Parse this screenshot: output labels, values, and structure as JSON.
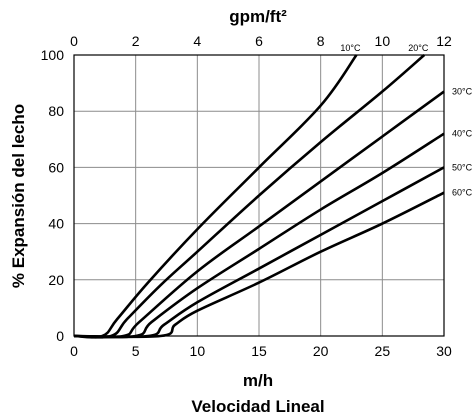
{
  "chart_data": {
    "type": "line",
    "x_top_label": "gpm/ft²",
    "x_bottom_label": "m/h",
    "x_bottom_sublabel": "Velocidad Lineal",
    "ylabel": "% Expansión del lecho",
    "x_bottom_ticks": [
      "0",
      "5",
      "10",
      "15",
      "20",
      "25",
      "30"
    ],
    "x_top_ticks": [
      "0",
      "2",
      "4",
      "6",
      "8",
      "10",
      "12"
    ],
    "y_ticks": [
      "0",
      "20",
      "40",
      "60",
      "80",
      "100"
    ],
    "xlim": [
      0,
      30
    ],
    "ylim": [
      0,
      100
    ],
    "grid": true,
    "series": [
      {
        "name": "10°C",
        "color": "#000000",
        "points": [
          [
            0,
            0
          ],
          [
            2.3,
            0
          ],
          [
            3.5,
            6
          ],
          [
            6,
            19
          ],
          [
            10,
            38
          ],
          [
            15,
            60
          ],
          [
            20,
            82
          ],
          [
            22.9,
            100
          ]
        ]
      },
      {
        "name": "20°C",
        "color": "#000000",
        "points": [
          [
            0,
            0
          ],
          [
            3,
            0
          ],
          [
            4.3,
            6
          ],
          [
            7,
            18
          ],
          [
            10,
            30
          ],
          [
            15,
            50
          ],
          [
            20,
            69
          ],
          [
            25,
            87
          ],
          [
            28.4,
            100
          ]
        ]
      },
      {
        "name": "30°C",
        "color": "#000000",
        "points": [
          [
            0,
            0
          ],
          [
            4,
            0
          ],
          [
            5.3,
            5
          ],
          [
            10,
            23
          ],
          [
            15,
            39
          ],
          [
            20,
            55
          ],
          [
            25,
            71
          ],
          [
            30,
            87
          ]
        ]
      },
      {
        "name": "40°C",
        "color": "#000000",
        "points": [
          [
            0,
            0
          ],
          [
            5,
            0
          ],
          [
            6.3,
            5
          ],
          [
            10,
            17
          ],
          [
            15,
            31
          ],
          [
            20,
            45
          ],
          [
            25,
            58
          ],
          [
            30,
            72
          ]
        ]
      },
      {
        "name": "50°C",
        "color": "#000000",
        "points": [
          [
            0,
            0
          ],
          [
            6,
            0
          ],
          [
            7.3,
            4
          ],
          [
            10,
            12
          ],
          [
            15,
            24
          ],
          [
            20,
            36
          ],
          [
            25,
            48
          ],
          [
            30,
            60
          ]
        ]
      },
      {
        "name": "60°C",
        "color": "#000000",
        "points": [
          [
            0,
            0
          ],
          [
            7,
            0
          ],
          [
            8.2,
            4
          ],
          [
            10,
            9
          ],
          [
            15,
            19
          ],
          [
            20,
            30
          ],
          [
            25,
            40
          ],
          [
            30,
            51
          ]
        ]
      }
    ]
  }
}
